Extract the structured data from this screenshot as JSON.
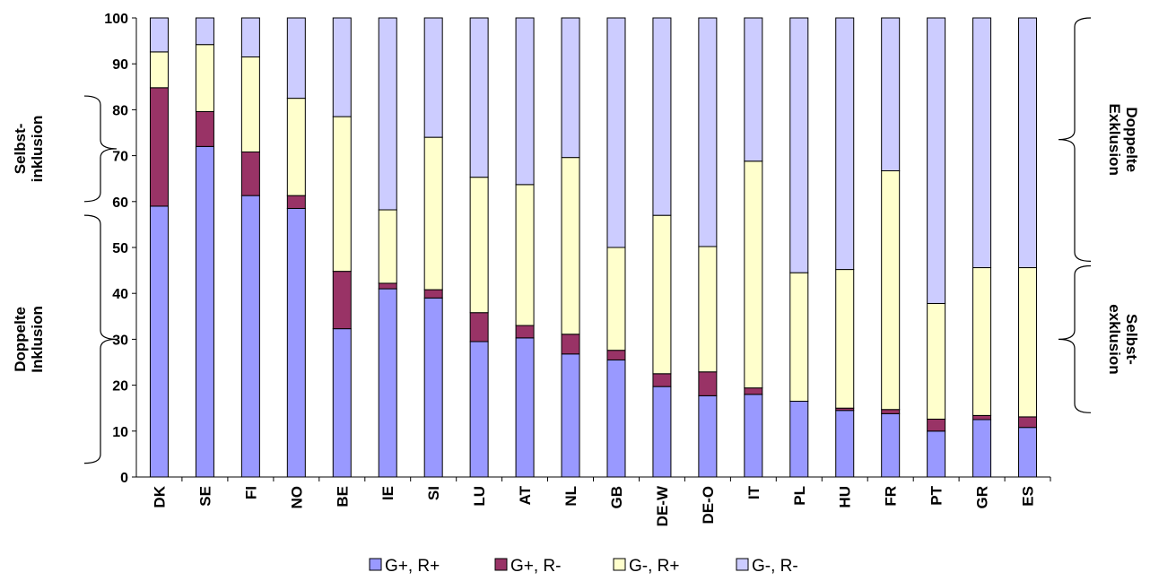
{
  "chart_data": {
    "type": "bar",
    "stacked": true,
    "categories": [
      "DK",
      "SE",
      "FI",
      "NO",
      "BE",
      "IE",
      "SI",
      "LU",
      "AT",
      "NL",
      "GB",
      "DE-W",
      "DE-O",
      "IT",
      "PL",
      "HU",
      "FR",
      "PT",
      "GR",
      "ES"
    ],
    "series": [
      {
        "name": "G+, R+",
        "color": "#9999ff",
        "values": [
          59,
          72,
          61.3,
          58.5,
          32.3,
          41,
          39,
          29.5,
          30.3,
          26.8,
          25.5,
          19.7,
          17.7,
          18,
          16.5,
          14.5,
          13.8,
          10,
          12.5,
          10.8
        ]
      },
      {
        "name": "G+, R-",
        "color": "#993366",
        "values": [
          25.8,
          7.6,
          9.5,
          2.8,
          12.5,
          1.2,
          1.8,
          6.3,
          2.7,
          4.3,
          2.1,
          2.8,
          5.2,
          1.4,
          0,
          0.5,
          0.9,
          2.6,
          0.9,
          2.3
        ]
      },
      {
        "name": "G-, R+",
        "color": "#ffffcc",
        "values": [
          7.8,
          14.6,
          20.7,
          21.2,
          33.7,
          16,
          33.2,
          29.5,
          30.7,
          38.5,
          22.4,
          34.5,
          27.3,
          49.4,
          28,
          30.2,
          52,
          25.2,
          32.2,
          32.5
        ]
      },
      {
        "name": "G-, R-",
        "color": "#ccccff",
        "values": [
          7.4,
          5.8,
          8.5,
          17.5,
          21.5,
          41.8,
          26,
          34.7,
          36.3,
          30.4,
          50,
          43,
          49.8,
          31.2,
          55.5,
          54.8,
          33.3,
          62.2,
          54.4,
          54.4
        ]
      }
    ],
    "yaxis": {
      "min": 0,
      "max": 100,
      "ticks": [
        "0",
        "10",
        "20",
        "30",
        "40",
        "50",
        "60",
        "70",
        "80",
        "90",
        "100"
      ]
    },
    "legend_position": "bottom",
    "annotations": {
      "left": [
        {
          "line1": "Selbst-",
          "line2": "inklusion",
          "from": 60,
          "to": 83
        },
        {
          "line1": "Doppelte",
          "line2": "Inklusion",
          "from": 3,
          "to": 57
        }
      ],
      "right": [
        {
          "line1": "Doppelte",
          "line2": "Exklusion",
          "from": 47,
          "to": 100
        },
        {
          "line1": "Selbst-",
          "line2": "exklusion",
          "from": 14,
          "to": 46
        }
      ]
    }
  }
}
